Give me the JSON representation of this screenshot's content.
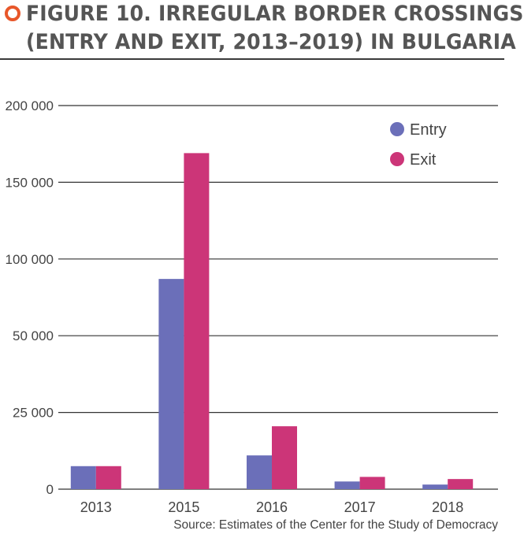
{
  "figure": {
    "title_line1": "FIGURE 10. IRREGULAR BORDER CROSSINGS",
    "title_line2": "(ENTRY AND EXIT, 2013–2019) IN BULGARIA",
    "source": "Source: Estimates of the Center for the Study of Democracy"
  },
  "colors": {
    "accent": "#e8572a",
    "entry": "#6b6fb9",
    "exit": "#cc3578",
    "grid": "#333333"
  },
  "chart_data": {
    "type": "bar",
    "title": "FIGURE 10. IRREGULAR BORDER CROSSINGS (ENTRY AND EXIT, 2013–2019) IN BULGARIA",
    "categories": [
      "2013",
      "2015",
      "2016",
      "2017",
      "2018"
    ],
    "series": [
      {
        "name": "Entry",
        "color": "#6b6fb9",
        "values": [
          7500,
          87000,
          11000,
          2500,
          1500
        ]
      },
      {
        "name": "Exit",
        "color": "#cc3578",
        "values": [
          7500,
          169000,
          20500,
          4000,
          3300
        ]
      }
    ],
    "y_ticks": [
      {
        "value": 0,
        "label": "0"
      },
      {
        "value": 25000,
        "label": "25 000"
      },
      {
        "value": 50000,
        "label": "50 000"
      },
      {
        "value": 100000,
        "label": "100 000"
      },
      {
        "value": 150000,
        "label": "150 000"
      },
      {
        "value": 200000,
        "label": "200 000"
      }
    ],
    "ylim": [
      0,
      200000
    ],
    "xlabel": "",
    "ylabel": "",
    "grid": true,
    "legend": "top-right"
  }
}
